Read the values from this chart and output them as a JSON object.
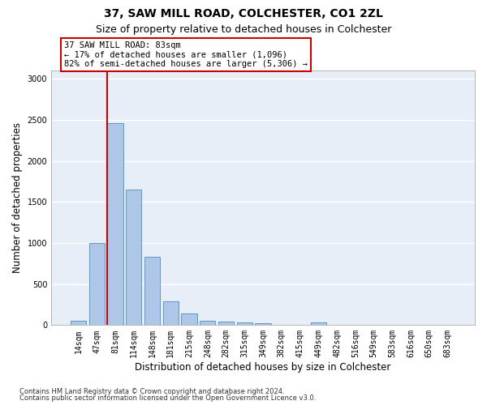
{
  "title1": "37, SAW MILL ROAD, COLCHESTER, CO1 2ZL",
  "title2": "Size of property relative to detached houses in Colchester",
  "xlabel": "Distribution of detached houses by size in Colchester",
  "ylabel": "Number of detached properties",
  "footnote1": "Contains HM Land Registry data © Crown copyright and database right 2024.",
  "footnote2": "Contains public sector information licensed under the Open Government Licence v3.0.",
  "bin_labels": [
    "14sqm",
    "47sqm",
    "81sqm",
    "114sqm",
    "148sqm",
    "181sqm",
    "215sqm",
    "248sqm",
    "282sqm",
    "315sqm",
    "349sqm",
    "382sqm",
    "415sqm",
    "449sqm",
    "482sqm",
    "516sqm",
    "549sqm",
    "583sqm",
    "616sqm",
    "650sqm",
    "683sqm"
  ],
  "bar_heights": [
    55,
    1000,
    2460,
    1650,
    830,
    290,
    145,
    55,
    45,
    35,
    20,
    5,
    0,
    30,
    5,
    0,
    0,
    0,
    0,
    0,
    0
  ],
  "bar_color": "#aec6e8",
  "bar_edge_color": "#5a9ac8",
  "property_bin_index": 2,
  "vline_color": "#cc0000",
  "annotation_text": "37 SAW MILL ROAD: 83sqm\n← 17% of detached houses are smaller (1,096)\n82% of semi-detached houses are larger (5,306) →",
  "annotation_box_color": "#ffffff",
  "annotation_box_edge_color": "#cc0000",
  "ylim": [
    0,
    3100
  ],
  "yticks": [
    0,
    500,
    1000,
    1500,
    2000,
    2500,
    3000
  ],
  "background_color": "#e8eef7",
  "grid_color": "#ffffff",
  "title1_fontsize": 10,
  "title2_fontsize": 9,
  "xlabel_fontsize": 8.5,
  "ylabel_fontsize": 8.5,
  "tick_fontsize": 7,
  "annotation_fontsize": 7.5,
  "footnote_fontsize": 6
}
